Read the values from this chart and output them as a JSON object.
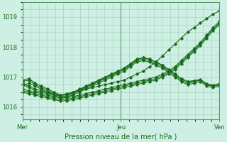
{
  "title": "",
  "xlabel": "Pression niveau de la mer( hPa )",
  "ylabel": "",
  "bg_color": "#cef0e4",
  "grid_color": "#aad4c0",
  "line_color": "#1a6b1a",
  "tick_color": "#1a6b1a",
  "label_color": "#1a6b1a",
  "axis_color": "#5a9a6a",
  "ylim": [
    1015.6,
    1019.5
  ],
  "xlim": [
    0,
    48
  ],
  "yticks": [
    1016,
    1017,
    1018,
    1019
  ],
  "xtick_positions": [
    0,
    24,
    48
  ],
  "xtick_labels": [
    "Mer",
    "Jeu",
    "Ven"
  ],
  "series": [
    [
      1016.8,
      1016.7,
      1016.6,
      1016.55,
      1016.5,
      1016.45,
      1016.4,
      1016.45,
      1016.5,
      1016.55,
      1016.6,
      1016.65,
      1016.7,
      1016.75,
      1016.8,
      1016.85,
      1016.9,
      1017.0,
      1017.1,
      1017.2,
      1017.35,
      1017.5,
      1017.7,
      1017.9,
      1018.1,
      1018.3,
      1018.5,
      1018.65,
      1018.8,
      1018.95,
      1019.1,
      1019.2
    ],
    [
      1016.6,
      1016.55,
      1016.5,
      1016.45,
      1016.4,
      1016.35,
      1016.3,
      1016.32,
      1016.35,
      1016.4,
      1016.45,
      1016.5,
      1016.55,
      1016.6,
      1016.65,
      1016.7,
      1016.75,
      1016.8,
      1016.85,
      1016.9,
      1016.95,
      1017.0,
      1017.1,
      1017.2,
      1017.35,
      1017.55,
      1017.75,
      1017.95,
      1018.15,
      1018.4,
      1018.65,
      1018.85
    ],
    [
      1016.5,
      1016.45,
      1016.4,
      1016.35,
      1016.3,
      1016.25,
      1016.2,
      1016.22,
      1016.25,
      1016.3,
      1016.35,
      1016.4,
      1016.45,
      1016.5,
      1016.55,
      1016.6,
      1016.65,
      1016.7,
      1016.75,
      1016.8,
      1016.85,
      1016.9,
      1017.0,
      1017.1,
      1017.25,
      1017.45,
      1017.65,
      1017.85,
      1018.05,
      1018.3,
      1018.55,
      1018.75
    ],
    [
      1016.55,
      1016.5,
      1016.45,
      1016.4,
      1016.35,
      1016.3,
      1016.25,
      1016.27,
      1016.3,
      1016.35,
      1016.4,
      1016.45,
      1016.5,
      1016.55,
      1016.6,
      1016.65,
      1016.7,
      1016.75,
      1016.8,
      1016.85,
      1016.9,
      1016.95,
      1017.05,
      1017.15,
      1017.3,
      1017.5,
      1017.7,
      1017.9,
      1018.1,
      1018.35,
      1018.6,
      1018.8
    ],
    [
      1016.7,
      1016.8,
      1016.7,
      1016.6,
      1016.5,
      1016.4,
      1016.3,
      1016.35,
      1016.4,
      1016.5,
      1016.6,
      1016.7,
      1016.8,
      1016.9,
      1017.0,
      1017.1,
      1017.2,
      1017.35,
      1017.5,
      1017.55,
      1017.5,
      1017.4,
      1017.3,
      1017.15,
      1017.0,
      1016.85,
      1016.75,
      1016.8,
      1016.85,
      1016.7,
      1016.65,
      1016.7
    ],
    [
      1016.85,
      1016.9,
      1016.75,
      1016.65,
      1016.55,
      1016.45,
      1016.35,
      1016.38,
      1016.45,
      1016.55,
      1016.65,
      1016.75,
      1016.85,
      1016.95,
      1017.05,
      1017.15,
      1017.25,
      1017.4,
      1017.55,
      1017.6,
      1017.55,
      1017.45,
      1017.35,
      1017.2,
      1017.05,
      1016.9,
      1016.8,
      1016.85,
      1016.9,
      1016.75,
      1016.7,
      1016.75
    ],
    [
      1016.9,
      1016.95,
      1016.8,
      1016.7,
      1016.6,
      1016.5,
      1016.4,
      1016.42,
      1016.48,
      1016.58,
      1016.68,
      1016.78,
      1016.88,
      1016.98,
      1017.08,
      1017.18,
      1017.28,
      1017.43,
      1017.58,
      1017.65,
      1017.6,
      1017.5,
      1017.4,
      1017.25,
      1017.1,
      1016.95,
      1016.85,
      1016.88,
      1016.92,
      1016.78,
      1016.73,
      1016.78
    ],
    [
      1016.75,
      1016.65,
      1016.55,
      1016.5,
      1016.45,
      1016.4,
      1016.38,
      1016.42,
      1016.5,
      1016.6,
      1016.7,
      1016.8,
      1016.9,
      1017.0,
      1017.1,
      1017.2,
      1017.3,
      1017.45,
      1017.6,
      1017.65,
      1017.6,
      1017.5,
      1017.4,
      1017.25,
      1017.1,
      1016.95,
      1016.85,
      1016.88,
      1016.9,
      1016.75,
      1016.7,
      1016.75
    ]
  ]
}
